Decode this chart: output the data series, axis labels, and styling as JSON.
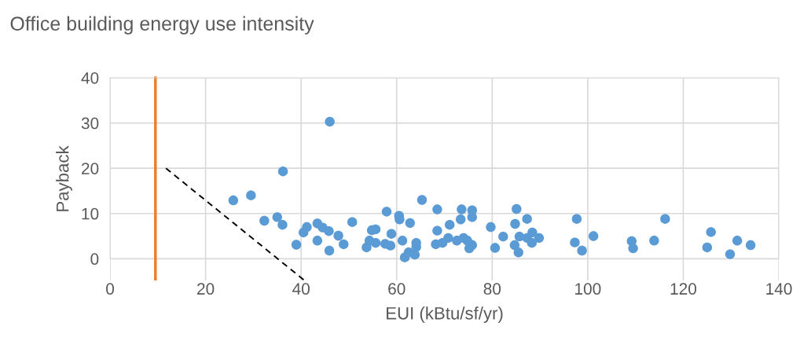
{
  "chart_data": {
    "type": "scatter",
    "title": "Office building energy use intensity",
    "xlabel": "EUI (kBtu/sf/yr)",
    "ylabel": "Payback",
    "xlim": [
      0,
      140
    ],
    "xticks": [
      0,
      20,
      40,
      60,
      80,
      100,
      120,
      140
    ],
    "ylim": [
      -4.8,
      40
    ],
    "yticks": [
      0,
      10,
      20,
      30,
      40
    ],
    "grid": true,
    "marker": "circle",
    "series": [
      {
        "color": "#5b9bd5",
        "x": [
          25.8,
          29.5,
          36.2,
          46.0,
          32.3,
          35.0,
          36.1,
          39.0,
          40.5,
          41.2,
          43.4,
          44.5,
          45.8,
          43.4,
          45.9,
          47.8,
          48.9,
          50.7,
          53.7,
          54.3,
          54.8,
          55.6,
          55.6,
          57.6,
          58.7,
          57.9,
          58.9,
          60.5,
          60.6,
          61.2,
          62.8,
          61.7,
          62.5,
          63.8,
          64.1,
          64.1,
          65.3,
          68.5,
          68.5,
          68.2,
          69.6,
          70.8,
          71.1,
          72.6,
          73.4,
          73.6,
          74.0,
          74.8,
          75.2,
          75.8,
          75.8,
          75.8,
          79.7,
          80.6,
          82.3,
          85.1,
          84.8,
          87.3,
          85.7,
          84.7,
          85.5,
          87.3,
          88.4,
          88.3,
          89.8,
          97.7,
          97.3,
          98.8,
          101.2,
          109.2,
          109.5,
          113.9,
          116.2,
          125.8,
          125.0,
          129.8,
          131.3,
          134.1
        ],
        "values": [
          12.9,
          14.0,
          19.3,
          30.3,
          8.4,
          9.2,
          7.5,
          3.1,
          5.8,
          7.0,
          7.8,
          6.9,
          6.1,
          4.0,
          1.8,
          5.1,
          3.2,
          8.1,
          2.5,
          4.0,
          6.3,
          6.5,
          3.5,
          3.3,
          2.9,
          10.4,
          5.5,
          9.5,
          8.7,
          4.0,
          7.9,
          0.3,
          1.4,
          0.9,
          3.5,
          2.6,
          13.0,
          10.9,
          6.2,
          3.2,
          3.5,
          4.6,
          7.5,
          4.0,
          8.7,
          10.9,
          4.6,
          4.0,
          2.3,
          10.7,
          9.2,
          3.0,
          7.0,
          2.4,
          4.9,
          11.0,
          7.7,
          8.8,
          4.9,
          3.0,
          1.4,
          4.6,
          5.8,
          3.5,
          4.6,
          8.8,
          3.6,
          1.8,
          5.0,
          3.9,
          2.3,
          4.0,
          8.8,
          5.9,
          2.5,
          1.0,
          4.0,
          3.0
        ]
      },
      {
        "type": "line",
        "color": "#ed7d31",
        "x": [
          9.5,
          9.5
        ],
        "values": [
          40,
          -4.5
        ],
        "marker": "none"
      },
      {
        "type": "line",
        "color": "#000000",
        "x": [
          11.7,
          40.7
        ],
        "values": [
          20.0,
          -4.8
        ],
        "marker": "none",
        "line_style": "dashed"
      }
    ]
  }
}
